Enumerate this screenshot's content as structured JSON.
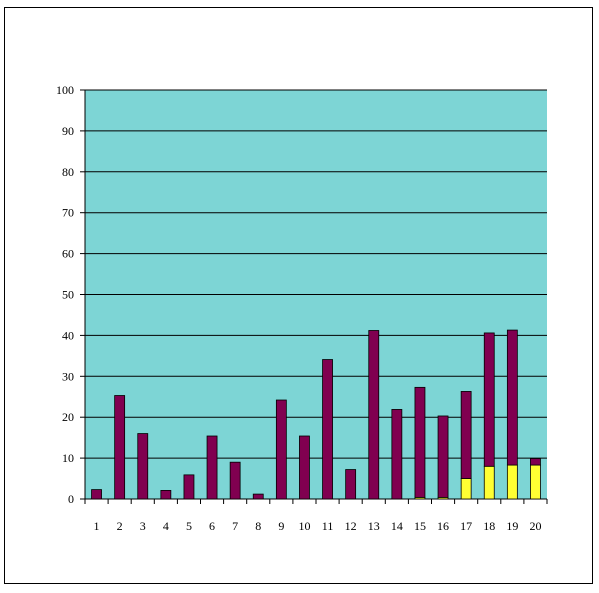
{
  "chart_data": {
    "type": "bar",
    "stacked": true,
    "title": "",
    "xlabel": "",
    "ylabel": "",
    "ylim": [
      0,
      100
    ],
    "yticks": [
      0,
      10,
      20,
      30,
      40,
      50,
      60,
      70,
      80,
      90,
      100
    ],
    "grid": true,
    "legend": "none",
    "categories": [
      "1",
      "2",
      "3",
      "4",
      "5",
      "6",
      "7",
      "8",
      "9",
      "10",
      "11",
      "12",
      "13",
      "14",
      "15",
      "16",
      "17",
      "18",
      "19",
      "20"
    ],
    "series": [
      {
        "color": "#ffff33",
        "values": [
          0,
          0,
          0,
          0,
          0,
          0,
          0,
          0,
          0,
          0,
          0,
          0,
          0,
          0,
          0.4,
          0.4,
          5,
          8,
          8.3,
          8.3
        ]
      },
      {
        "color": "#800050",
        "values": [
          2.3,
          25.3,
          16,
          2.1,
          5.9,
          15.4,
          9,
          1.2,
          24.2,
          15.4,
          34.1,
          7.2,
          41.2,
          21.9,
          26.9,
          19.9,
          21.3,
          32.6,
          33,
          1.6
        ]
      }
    ],
    "colors": {
      "plot_background": "#7dd5d5",
      "gridline": "#000000",
      "bar_outline": "#000000"
    }
  }
}
